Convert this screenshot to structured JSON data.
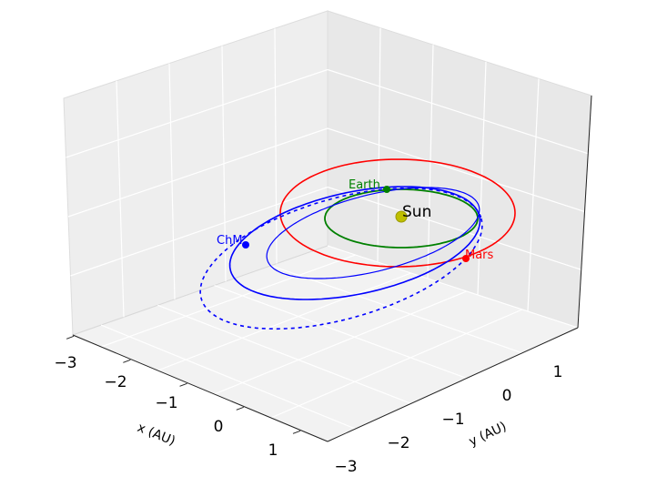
{
  "chart_data": {
    "type": "line",
    "projection": "3d",
    "xlabel": "x (AU)",
    "ylabel": "y (AU)",
    "xlim": [
      -3,
      1.5
    ],
    "ylim": [
      -3,
      1.5
    ],
    "x_ticks": [
      "−3",
      "−2",
      "−1",
      "0",
      "1"
    ],
    "y_ticks": [
      "−3",
      "−2",
      "−1",
      "0",
      "1"
    ],
    "grid": true,
    "series": [
      {
        "name": "Earth",
        "orbit": {
          "a": 1.0,
          "e": 0.017
        },
        "color": "#008000"
      },
      {
        "name": "Mars",
        "orbit": {
          "a": 1.52,
          "e": 0.093
        },
        "color": "#ff0000"
      },
      {
        "name": "ChM",
        "orbit": {
          "perihelion": 1.0,
          "aphelion": 2.2
        },
        "color": "#0000ff",
        "style": "solid"
      },
      {
        "name": "ChM",
        "orbit": {
          "perihelion": 1.0,
          "aphelion": 3.0
        },
        "color": "#0000ff",
        "style": "dotted"
      }
    ],
    "annotations": [
      {
        "text": "Sun",
        "x": 0,
        "y": 0,
        "color": "#000000",
        "marker_color": "#bfbf00"
      },
      {
        "text": "Earth",
        "color": "#008000"
      },
      {
        "text": "Mars",
        "color": "#ff0000"
      },
      {
        "text": "ChM",
        "color": "#0000ff"
      }
    ]
  }
}
